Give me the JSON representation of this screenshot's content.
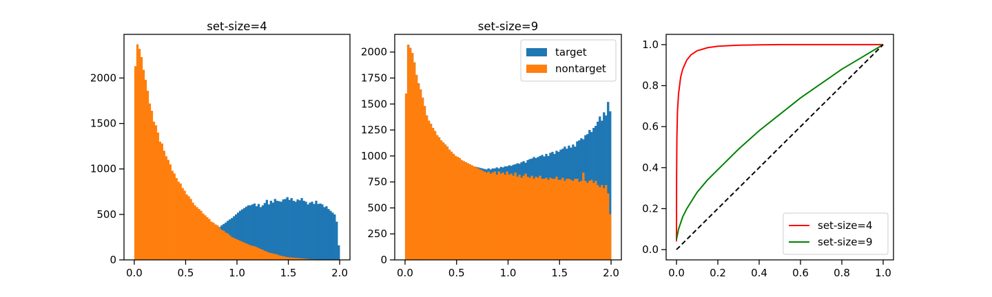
{
  "colors": {
    "target": "#1f77b4",
    "nontarget": "#ff7f0e",
    "roc4": "#ff0000",
    "roc9": "#008000",
    "diag": "#000000"
  },
  "chart_data": [
    {
      "type": "bar",
      "title": "set-size=4",
      "xlim": [
        -0.1,
        2.1
      ],
      "ylim": [
        0,
        2480
      ],
      "xticks": [
        0.0,
        0.5,
        1.0,
        1.5,
        2.0
      ],
      "xtick_labels": [
        "0.0",
        "0.5",
        "1.0",
        "1.5",
        "2.0"
      ],
      "yticks": [
        0,
        500,
        1000,
        1500,
        2000
      ],
      "ytick_labels": [
        "0",
        "500",
        "1000",
        "1500",
        "2000"
      ],
      "bins": {
        "start": 0.0,
        "end": 2.0,
        "count": 100
      },
      "series": [
        {
          "key": "target",
          "values": [
            0,
            0,
            0,
            0,
            0,
            0,
            0,
            0,
            0,
            0,
            0,
            0,
            0,
            0,
            0,
            0,
            0,
            0,
            0,
            0,
            0,
            0,
            0,
            0,
            0,
            0,
            0,
            0,
            0,
            0,
            0,
            0,
            0,
            0,
            0,
            290,
            300,
            310,
            320,
            330,
            345,
            360,
            380,
            395,
            410,
            430,
            445,
            460,
            480,
            500,
            520,
            540,
            555,
            570,
            585,
            600,
            600,
            610,
            620,
            590,
            615,
            580,
            600,
            625,
            660,
            610,
            650,
            630,
            670,
            650,
            645,
            640,
            665,
            670,
            690,
            660,
            680,
            650,
            640,
            665,
            655,
            680,
            650,
            640,
            610,
            630,
            640,
            615,
            650,
            615,
            620,
            610,
            580,
            590,
            560,
            540,
            520,
            500,
            420,
            160
          ]
        },
        {
          "key": "nontarget",
          "values": [
            2130,
            2370,
            2320,
            2230,
            2090,
            1980,
            1860,
            1720,
            1640,
            1520,
            1480,
            1400,
            1300,
            1280,
            1200,
            1140,
            1100,
            1050,
            980,
            950,
            900,
            860,
            840,
            790,
            760,
            720,
            700,
            670,
            630,
            600,
            580,
            560,
            540,
            510,
            490,
            470,
            450,
            420,
            410,
            390,
            380,
            350,
            330,
            320,
            300,
            290,
            270,
            250,
            240,
            230,
            220,
            210,
            200,
            190,
            180,
            170,
            160,
            155,
            150,
            140,
            130,
            120,
            110,
            100,
            90,
            80,
            75,
            70,
            65,
            60,
            50,
            45,
            40,
            35,
            30,
            28,
            26,
            24,
            22,
            20,
            18,
            16,
            14,
            12,
            10,
            8,
            7,
            6,
            5,
            5,
            4,
            4,
            3,
            3,
            2,
            2,
            2,
            1,
            1,
            0
          ]
        }
      ]
    },
    {
      "type": "bar",
      "title": "set-size=9",
      "xlim": [
        -0.1,
        2.1
      ],
      "ylim": [
        0,
        2170
      ],
      "xticks": [
        0.0,
        0.5,
        1.0,
        1.5,
        2.0
      ],
      "xtick_labels": [
        "0.0",
        "0.5",
        "1.0",
        "1.5",
        "2.0"
      ],
      "yticks": [
        0,
        250,
        500,
        750,
        1000,
        1250,
        1500,
        1750,
        2000
      ],
      "ytick_labels": [
        "0",
        "250",
        "500",
        "750",
        "1000",
        "1250",
        "1500",
        "1750",
        "2000"
      ],
      "bins": {
        "start": 0.0,
        "end": 2.0,
        "count": 100
      },
      "legend": {
        "position": "upper right",
        "entries": [
          {
            "label": "target",
            "key": "target"
          },
          {
            "label": "nontarget",
            "key": "nontarget"
          }
        ]
      },
      "series": [
        {
          "key": "target",
          "values": [
            1600,
            2070,
            2040,
            1990,
            1900,
            1780,
            1700,
            1640,
            1560,
            1480,
            1390,
            1340,
            1310,
            1270,
            1240,
            1200,
            1180,
            1150,
            1130,
            1110,
            1090,
            1060,
            1040,
            1020,
            1000,
            990,
            980,
            960,
            950,
            940,
            930,
            920,
            910,
            900,
            895,
            890,
            885,
            880,
            875,
            870,
            880,
            870,
            880,
            880,
            890,
            880,
            895,
            890,
            900,
            900,
            910,
            905,
            915,
            920,
            930,
            925,
            940,
            950,
            935,
            960,
            970,
            975,
            990,
            980,
            990,
            1000,
            1010,
            995,
            1020,
            1000,
            1030,
            1040,
            1020,
            1050,
            1040,
            1060,
            1070,
            1090,
            1070,
            1100,
            1080,
            1110,
            1090,
            1140,
            1150,
            1170,
            1160,
            1200,
            1210,
            1250,
            1230,
            1270,
            1290,
            1330,
            1380,
            1340,
            1420,
            1390,
            1520,
            1430
          ]
        },
        {
          "key": "nontarget",
          "values": [
            1600,
            2070,
            2040,
            1990,
            1900,
            1780,
            1700,
            1640,
            1560,
            1480,
            1390,
            1340,
            1310,
            1270,
            1240,
            1200,
            1180,
            1150,
            1130,
            1110,
            1090,
            1060,
            1040,
            1020,
            1000,
            990,
            980,
            960,
            950,
            940,
            930,
            920,
            910,
            900,
            890,
            880,
            870,
            860,
            850,
            840,
            850,
            830,
            840,
            850,
            820,
            850,
            830,
            840,
            820,
            850,
            820,
            830,
            810,
            840,
            800,
            820,
            790,
            810,
            830,
            800,
            790,
            810,
            780,
            800,
            790,
            810,
            780,
            780,
            790,
            770,
            790,
            780,
            780,
            800,
            770,
            770,
            790,
            760,
            780,
            780,
            770,
            760,
            780,
            780,
            750,
            760,
            840,
            760,
            740,
            760,
            770,
            740,
            760,
            720,
            700,
            720,
            690,
            720,
            640,
            440
          ]
        }
      ]
    },
    {
      "type": "line",
      "title": "",
      "xlim": [
        -0.05,
        1.05
      ],
      "ylim": [
        -0.05,
        1.05
      ],
      "xticks": [
        0.0,
        0.2,
        0.4,
        0.6,
        0.8,
        1.0
      ],
      "xtick_labels": [
        "0.0",
        "0.2",
        "0.4",
        "0.6",
        "0.8",
        "1.0"
      ],
      "yticks": [
        0.0,
        0.2,
        0.4,
        0.6,
        0.8,
        1.0
      ],
      "ytick_labels": [
        "0.0",
        "0.2",
        "0.4",
        "0.6",
        "0.8",
        "1.0"
      ],
      "legend": {
        "position": "lower right",
        "entries": [
          {
            "label": "set-size=4",
            "key": "roc4"
          },
          {
            "label": "set-size=9",
            "key": "roc9"
          }
        ]
      },
      "series": [
        {
          "key": "roc4",
          "name": "set-size=4",
          "x": [
            0,
            0.0005,
            0.002,
            0.005,
            0.01,
            0.02,
            0.03,
            0.05,
            0.07,
            0.1,
            0.15,
            0.2,
            0.3,
            0.4,
            0.5,
            0.6,
            0.8,
            1.0
          ],
          "y": [
            0.04,
            0.35,
            0.55,
            0.68,
            0.76,
            0.84,
            0.88,
            0.925,
            0.95,
            0.97,
            0.985,
            0.992,
            0.997,
            0.999,
            1.0,
            1.0,
            1.0,
            1.0
          ]
        },
        {
          "key": "roc9",
          "name": "set-size=9",
          "x": [
            0,
            0.01,
            0.03,
            0.05,
            0.1,
            0.15,
            0.2,
            0.3,
            0.4,
            0.5,
            0.6,
            0.7,
            0.8,
            0.9,
            1.0
          ],
          "y": [
            0.05,
            0.1,
            0.16,
            0.2,
            0.28,
            0.34,
            0.39,
            0.49,
            0.58,
            0.66,
            0.74,
            0.81,
            0.88,
            0.94,
            1.0
          ]
        },
        {
          "key": "diag",
          "x": [
            0,
            1
          ],
          "y": [
            0,
            1
          ]
        }
      ]
    }
  ]
}
